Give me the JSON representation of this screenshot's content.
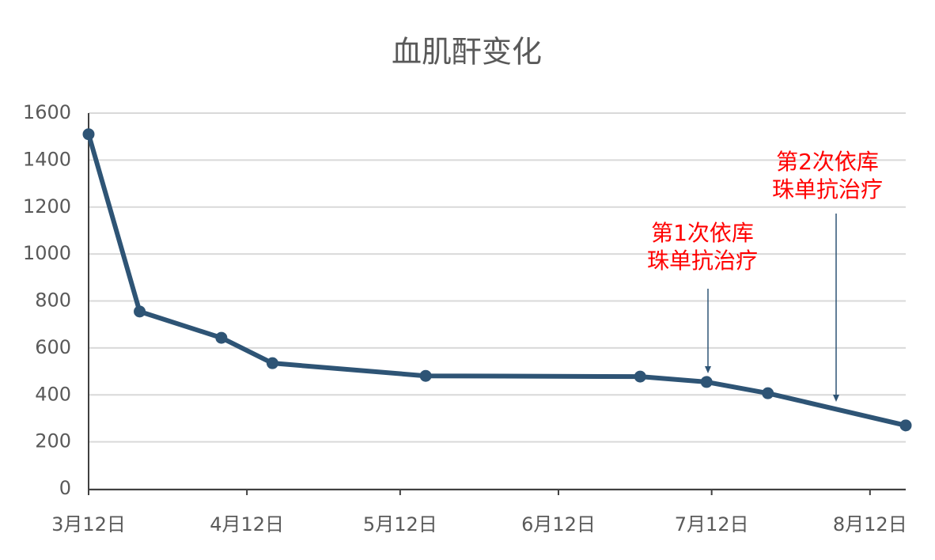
{
  "chart_data": {
    "type": "line",
    "title": "血肌酐变化",
    "x": [
      0,
      10,
      26,
      36,
      66,
      108,
      121,
      133,
      160
    ],
    "series": [
      {
        "name": "血肌酐",
        "color": "#2e5475",
        "values": [
          1510,
          755,
          643,
          535,
          481,
          478,
          455,
          407,
          270
        ]
      }
    ],
    "xlim": [
      0,
      160
    ],
    "xticks": [
      {
        "value": 0,
        "label": "3月12日"
      },
      {
        "value": 31,
        "label": "4月12日"
      },
      {
        "value": 61,
        "label": "5月12日"
      },
      {
        "value": 92,
        "label": "6月12日"
      },
      {
        "value": 122,
        "label": "7月12日"
      },
      {
        "value": 153,
        "label": "8月12日"
      }
    ],
    "ylim": [
      0,
      1600
    ],
    "yticks": [
      0,
      200,
      400,
      600,
      800,
      1000,
      1200,
      1400,
      1600
    ],
    "grid": true,
    "annotations": [
      {
        "lines": [
          "第1次依库",
          "珠单抗治疗"
        ],
        "color": "#ff0000"
      },
      {
        "lines": [
          "第2次依库",
          "珠单抗治疗"
        ],
        "color": "#ff0000"
      }
    ]
  }
}
